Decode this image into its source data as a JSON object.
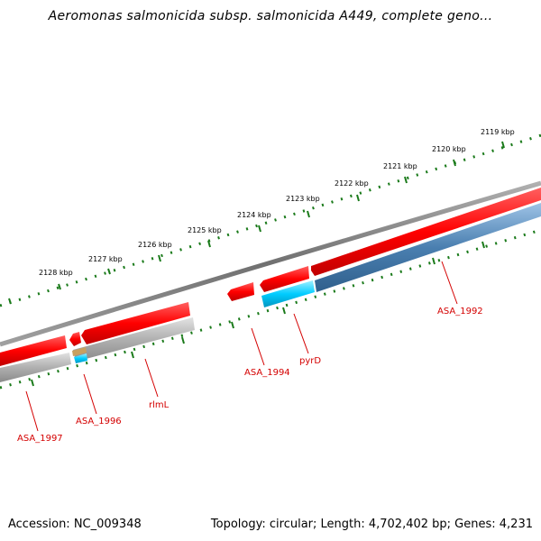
{
  "title": "Aeromonas salmonicida subsp. salmonicida A449, complete geno...",
  "footer": {
    "accession": "Accession: NC_009348",
    "summary": "Topology: circular; Length: 4,702,402 bp; Genes: 4,231"
  },
  "kbp_labels": [
    "2119 kbp",
    "2120 kbp",
    "2121 kbp",
    "2122 kbp",
    "2123 kbp",
    "2124 kbp",
    "2125 kbp",
    "2126 kbp",
    "2127 kbp",
    "2128 kbp"
  ],
  "gene_labels": [
    "ASA_1992",
    "pyrD",
    "ASA_1994",
    "rlmL",
    "ASA_1996",
    "ASA_1997"
  ],
  "colors": {
    "backbone": "#808080",
    "forward_gene": "#ff0000",
    "reverse_gene": "#aaaaaa",
    "highlight_gene": "#00ccff",
    "reverse_blue": "#4a7fb0",
    "tick": "#1a7a1a",
    "label": "#d40000"
  }
}
